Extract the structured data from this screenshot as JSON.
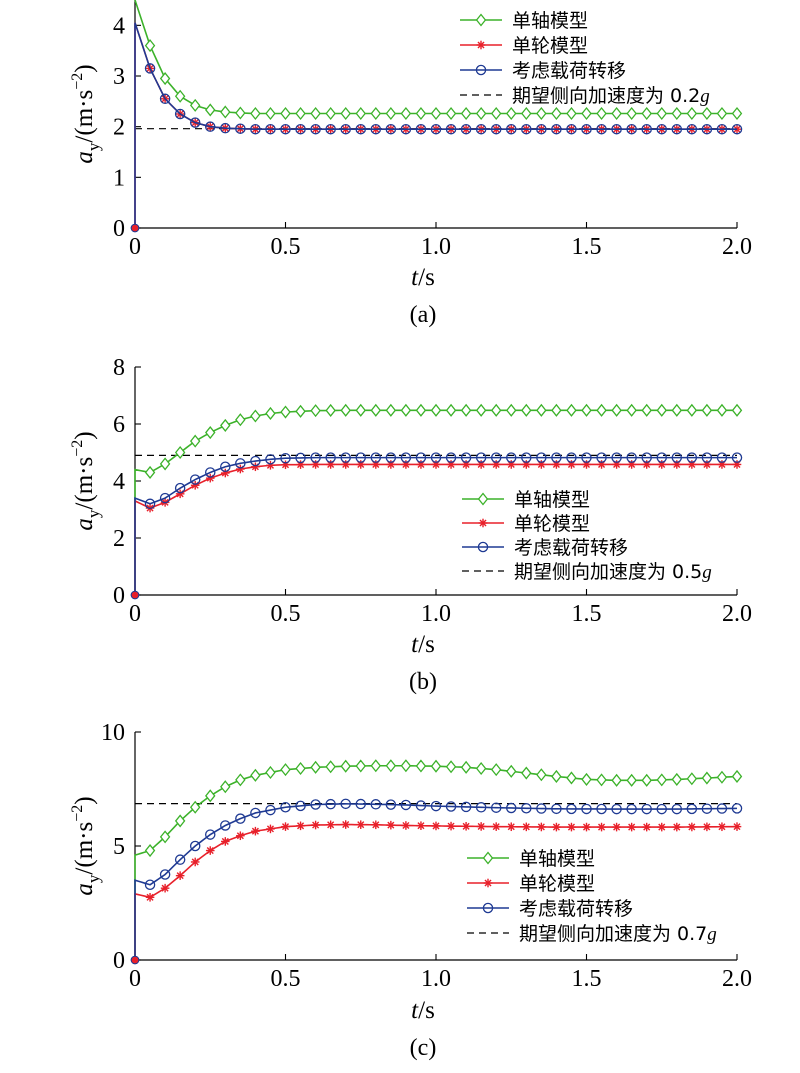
{
  "colors": {
    "single_axle": "#3cb22a",
    "single_wheel": "#e8202a",
    "load_transfer": "#1f3a93",
    "desired": "#000000"
  },
  "chart_data": [
    {
      "type": "line",
      "caption": "(a)",
      "xlabel_italic": "t",
      "xlabel_unit": "/s",
      "ylabel_symbol": "a",
      "ylabel_sub": "y",
      "ylabel_unit": "/(m·s",
      "ylabel_exp": "−2",
      "ylabel_close": ")",
      "xlim": [
        0,
        2.0
      ],
      "ylim": [
        0,
        4.5
      ],
      "xticks": [
        "0",
        "0.5",
        "1.0",
        "1.5",
        "2.0"
      ],
      "yticks": [
        "0",
        "1",
        "2",
        "3",
        "4"
      ],
      "legend_position": "top-right",
      "series": [
        {
          "name": "单轴模型",
          "key": "single_axle",
          "marker": "diamond",
          "start": 4.5,
          "t0": 4.5,
          "x": [
            0,
            0.05,
            0.1,
            0.15,
            0.2,
            0.25,
            0.3,
            0.35,
            0.4,
            0.5,
            0.6,
            0.8,
            1.0,
            1.2,
            1.4,
            1.6,
            1.8,
            2.0
          ],
          "y": [
            4.5,
            3.6,
            2.95,
            2.6,
            2.42,
            2.33,
            2.29,
            2.27,
            2.26,
            2.26,
            2.26,
            2.26,
            2.26,
            2.26,
            2.26,
            2.26,
            2.26,
            2.26
          ]
        },
        {
          "name": "单轮模型",
          "key": "single_wheel",
          "marker": "star",
          "start": 0,
          "t0": 4.05,
          "x": [
            0,
            0.05,
            0.1,
            0.15,
            0.2,
            0.25,
            0.3,
            0.4,
            0.5,
            0.6,
            0.8,
            1.0,
            1.2,
            1.4,
            1.6,
            1.8,
            2.0
          ],
          "y": [
            4.05,
            3.15,
            2.55,
            2.25,
            2.08,
            2.0,
            1.97,
            1.95,
            1.95,
            1.95,
            1.95,
            1.95,
            1.95,
            1.95,
            1.95,
            1.95,
            1.95
          ]
        },
        {
          "name": "考虑载荷转移",
          "key": "load_transfer",
          "marker": "circle",
          "start": 0,
          "t0": 4.05,
          "x": [
            0,
            0.05,
            0.1,
            0.15,
            0.2,
            0.25,
            0.3,
            0.4,
            0.5,
            0.6,
            0.8,
            1.0,
            1.2,
            1.4,
            1.6,
            1.8,
            2.0
          ],
          "y": [
            4.05,
            3.15,
            2.55,
            2.25,
            2.08,
            2.0,
            1.97,
            1.95,
            1.95,
            1.95,
            1.95,
            1.95,
            1.95,
            1.95,
            1.95,
            1.95,
            1.95
          ]
        }
      ],
      "desired": {
        "label": "期望侧向加速度为 0.2",
        "g": "g",
        "value": 1.96
      }
    },
    {
      "type": "line",
      "caption": "(b)",
      "xlabel_italic": "t",
      "xlabel_unit": "/s",
      "ylabel_symbol": "a",
      "ylabel_sub": "y",
      "ylabel_unit": "/(m·s",
      "ylabel_exp": "−2",
      "ylabel_close": ")",
      "xlim": [
        0,
        2.0
      ],
      "ylim": [
        0,
        8
      ],
      "xticks": [
        "0",
        "0.5",
        "1.0",
        "1.5",
        "2.0"
      ],
      "yticks": [
        "0",
        "2",
        "4",
        "6",
        "8"
      ],
      "legend_position": "center-right",
      "series": [
        {
          "name": "单轴模型",
          "key": "single_axle",
          "marker": "diamond",
          "start": 0,
          "t0": 4.4,
          "x": [
            0,
            0.05,
            0.1,
            0.15,
            0.2,
            0.25,
            0.3,
            0.35,
            0.4,
            0.45,
            0.5,
            0.6,
            0.7,
            0.8,
            1.0,
            1.2,
            1.4,
            1.6,
            1.8,
            2.0
          ],
          "y": [
            4.4,
            4.3,
            4.6,
            5.0,
            5.4,
            5.7,
            5.95,
            6.15,
            6.28,
            6.37,
            6.42,
            6.47,
            6.48,
            6.48,
            6.48,
            6.48,
            6.48,
            6.48,
            6.48,
            6.48
          ]
        },
        {
          "name": "单轮模型",
          "key": "single_wheel",
          "marker": "star",
          "start": 0,
          "t0": 3.3,
          "x": [
            0,
            0.05,
            0.1,
            0.15,
            0.2,
            0.25,
            0.3,
            0.35,
            0.4,
            0.45,
            0.5,
            0.6,
            0.8,
            1.0,
            1.2,
            1.4,
            1.6,
            1.8,
            2.0
          ],
          "y": [
            3.3,
            3.05,
            3.25,
            3.55,
            3.85,
            4.1,
            4.28,
            4.42,
            4.5,
            4.55,
            4.57,
            4.58,
            4.58,
            4.58,
            4.58,
            4.58,
            4.58,
            4.58,
            4.58
          ]
        },
        {
          "name": "考虑载荷转移",
          "key": "load_transfer",
          "marker": "circle",
          "start": 0,
          "t0": 3.4,
          "x": [
            0,
            0.05,
            0.1,
            0.15,
            0.2,
            0.25,
            0.3,
            0.35,
            0.4,
            0.45,
            0.5,
            0.6,
            0.8,
            1.0,
            1.2,
            1.4,
            1.6,
            1.8,
            2.0
          ],
          "y": [
            3.4,
            3.2,
            3.4,
            3.75,
            4.05,
            4.3,
            4.5,
            4.62,
            4.7,
            4.76,
            4.8,
            4.82,
            4.82,
            4.82,
            4.82,
            4.82,
            4.82,
            4.82,
            4.82
          ]
        }
      ],
      "desired": {
        "label": "期望侧向加速度为 0.5",
        "g": "g",
        "value": 4.9
      }
    },
    {
      "type": "line",
      "caption": "(c)",
      "xlabel_italic": "t",
      "xlabel_unit": "/s",
      "ylabel_symbol": "a",
      "ylabel_sub": "y",
      "ylabel_unit": "/(m·s",
      "ylabel_exp": "−2",
      "ylabel_close": ")",
      "xlim": [
        0,
        2.0
      ],
      "ylim": [
        0,
        10
      ],
      "xticks": [
        "0",
        "0.5",
        "1.0",
        "1.5",
        "2.0"
      ],
      "yticks": [
        "0",
        "5",
        "10"
      ],
      "legend_position": "center-right",
      "series": [
        {
          "name": "单轴模型",
          "key": "single_axle",
          "marker": "diamond",
          "start": 0,
          "t0": 4.6,
          "x": [
            0,
            0.05,
            0.1,
            0.15,
            0.2,
            0.25,
            0.3,
            0.35,
            0.4,
            0.5,
            0.6,
            0.7,
            0.8,
            0.9,
            1.0,
            1.1,
            1.2,
            1.3,
            1.4,
            1.5,
            1.6,
            1.7,
            1.8,
            1.9,
            2.0
          ],
          "y": [
            4.6,
            4.8,
            5.4,
            6.1,
            6.7,
            7.2,
            7.6,
            7.9,
            8.1,
            8.35,
            8.45,
            8.5,
            8.52,
            8.52,
            8.5,
            8.45,
            8.35,
            8.2,
            8.05,
            7.92,
            7.88,
            7.88,
            7.92,
            7.98,
            8.05
          ]
        },
        {
          "name": "单轮模型",
          "key": "single_wheel",
          "marker": "star",
          "start": 0,
          "t0": 2.9,
          "x": [
            0,
            0.05,
            0.1,
            0.15,
            0.2,
            0.25,
            0.3,
            0.35,
            0.4,
            0.5,
            0.6,
            0.7,
            0.8,
            0.9,
            1.0,
            1.2,
            1.4,
            1.6,
            1.8,
            2.0
          ],
          "y": [
            2.9,
            2.75,
            3.15,
            3.7,
            4.3,
            4.8,
            5.2,
            5.45,
            5.65,
            5.85,
            5.92,
            5.94,
            5.93,
            5.9,
            5.88,
            5.85,
            5.83,
            5.83,
            5.83,
            5.85
          ]
        },
        {
          "name": "考虑载荷转移",
          "key": "load_transfer",
          "marker": "circle",
          "start": 0,
          "t0": 3.5,
          "x": [
            0,
            0.05,
            0.1,
            0.15,
            0.2,
            0.25,
            0.3,
            0.35,
            0.4,
            0.5,
            0.6,
            0.7,
            0.8,
            0.9,
            1.0,
            1.2,
            1.4,
            1.6,
            1.8,
            2.0
          ],
          "y": [
            3.5,
            3.3,
            3.75,
            4.4,
            5.0,
            5.5,
            5.9,
            6.2,
            6.45,
            6.7,
            6.82,
            6.85,
            6.83,
            6.8,
            6.75,
            6.68,
            6.63,
            6.62,
            6.62,
            6.65
          ]
        }
      ],
      "desired": {
        "label": "期望侧向加速度为 0.7",
        "g": "g",
        "value": 6.86
      }
    }
  ]
}
